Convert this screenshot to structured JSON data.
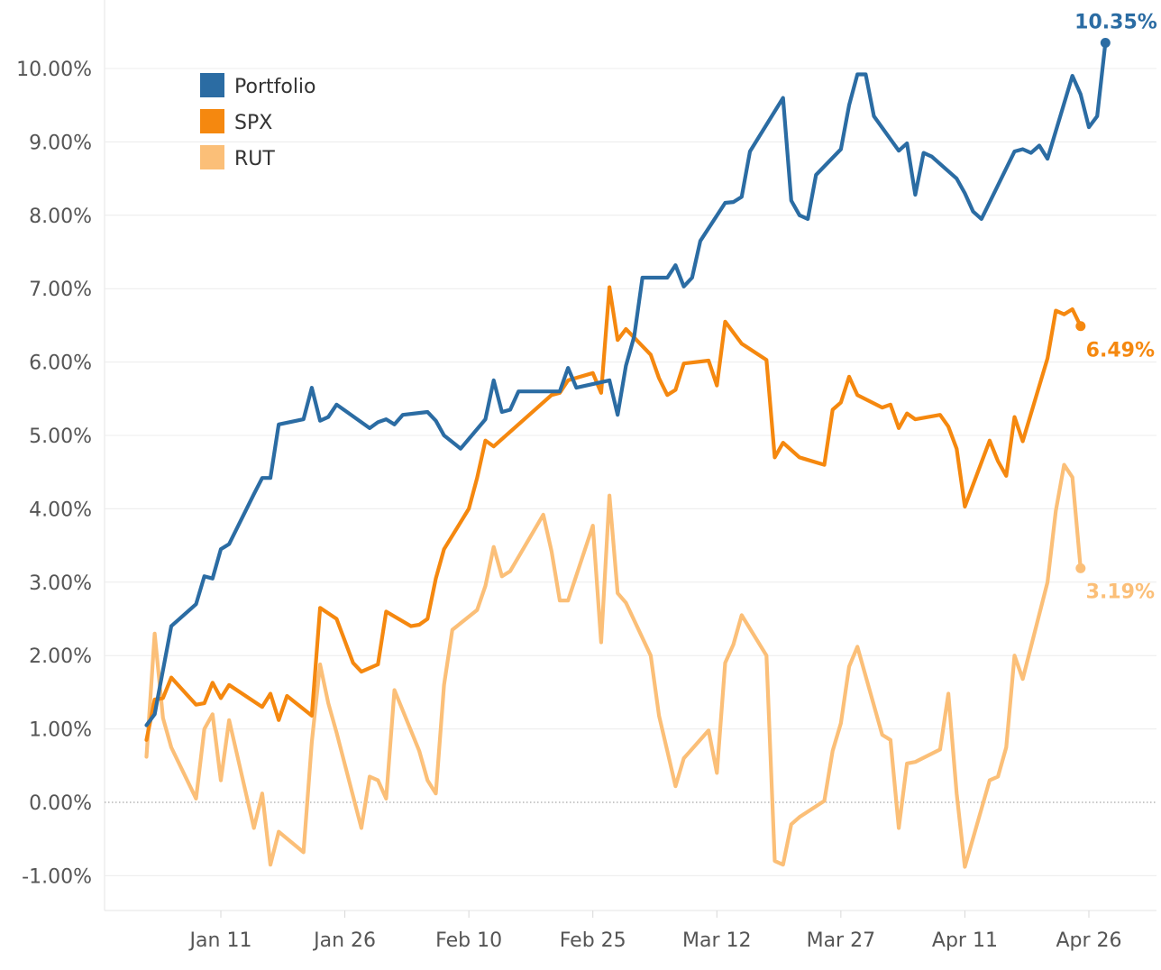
{
  "chart_data": {
    "type": "line",
    "title": "",
    "xlabel": "",
    "ylabel": "",
    "ylim": [
      -1.3,
      10.7
    ],
    "y_ticks": [
      "10.00%",
      "9.00%",
      "8.00%",
      "7.00%",
      "6.00%",
      "5.00%",
      "4.00%",
      "3.00%",
      "2.00%",
      "1.00%",
      "0.00%",
      "-1.00%"
    ],
    "y_tick_values": [
      10,
      9,
      8,
      7,
      6,
      5,
      4,
      3,
      2,
      1,
      0,
      -1
    ],
    "x_ticks": [
      "Jan 11",
      "Jan 26",
      "Feb 10",
      "Feb 25",
      "Mar 12",
      "Mar 27",
      "Apr 11",
      "Apr 26"
    ],
    "x_tick_days": [
      10,
      25,
      40,
      55,
      70,
      85,
      100,
      115
    ],
    "x_range_days": [
      -3,
      124
    ],
    "zero_line": true,
    "grid": "horizontal",
    "legend_position": "top-left",
    "series": [
      {
        "name": "Portfolio",
        "color": "#2b6ca3",
        "end_label": "10.35%",
        "points": [
          [
            1,
            1.05
          ],
          [
            2,
            1.2
          ],
          [
            4,
            2.4
          ],
          [
            7,
            2.7
          ],
          [
            8,
            3.08
          ],
          [
            9,
            3.05
          ],
          [
            10,
            3.45
          ],
          [
            11,
            3.52
          ],
          [
            14,
            4.2
          ],
          [
            15,
            4.42
          ],
          [
            16,
            4.42
          ],
          [
            17,
            5.15
          ],
          [
            20,
            5.22
          ],
          [
            21,
            5.65
          ],
          [
            22,
            5.2
          ],
          [
            23,
            5.25
          ],
          [
            24,
            5.42
          ],
          [
            28,
            5.1
          ],
          [
            29,
            5.18
          ],
          [
            30,
            5.22
          ],
          [
            31,
            5.15
          ],
          [
            32,
            5.28
          ],
          [
            35,
            5.32
          ],
          [
            36,
            5.2
          ],
          [
            37,
            5.0
          ],
          [
            39,
            4.82
          ],
          [
            42,
            5.22
          ],
          [
            43,
            5.75
          ],
          [
            44,
            5.32
          ],
          [
            45,
            5.35
          ],
          [
            46,
            5.6
          ],
          [
            51,
            5.6
          ],
          [
            52,
            5.92
          ],
          [
            53,
            5.65
          ],
          [
            57,
            5.75
          ],
          [
            58,
            5.28
          ],
          [
            59,
            5.95
          ],
          [
            60,
            6.35
          ],
          [
            61,
            7.15
          ],
          [
            64,
            7.15
          ],
          [
            65,
            7.32
          ],
          [
            66,
            7.03
          ],
          [
            67,
            7.15
          ],
          [
            68,
            7.65
          ],
          [
            71,
            8.17
          ],
          [
            72,
            8.18
          ],
          [
            73,
            8.25
          ],
          [
            74,
            8.87
          ],
          [
            78,
            9.6
          ],
          [
            79,
            8.2
          ],
          [
            80,
            8.0
          ],
          [
            81,
            7.95
          ],
          [
            82,
            8.55
          ],
          [
            85,
            8.9
          ],
          [
            86,
            9.5
          ],
          [
            87,
            9.92
          ],
          [
            88,
            9.92
          ],
          [
            89,
            9.35
          ],
          [
            92,
            8.88
          ],
          [
            93,
            8.98
          ],
          [
            94,
            8.28
          ],
          [
            95,
            8.85
          ],
          [
            96,
            8.8
          ],
          [
            99,
            8.5
          ],
          [
            100,
            8.3
          ],
          [
            101,
            8.05
          ],
          [
            102,
            7.95
          ],
          [
            106,
            8.87
          ],
          [
            107,
            8.9
          ],
          [
            108,
            8.85
          ],
          [
            109,
            8.95
          ],
          [
            110,
            8.77
          ],
          [
            113,
            9.9
          ],
          [
            114,
            9.65
          ],
          [
            115,
            9.2
          ],
          [
            116,
            9.35
          ],
          [
            117,
            10.35
          ]
        ]
      },
      {
        "name": "SPX",
        "color": "#f5880f",
        "end_label": "6.49%",
        "points": [
          [
            1,
            0.85
          ],
          [
            2,
            1.4
          ],
          [
            3,
            1.42
          ],
          [
            4,
            1.7
          ],
          [
            7,
            1.33
          ],
          [
            8,
            1.35
          ],
          [
            9,
            1.63
          ],
          [
            10,
            1.42
          ],
          [
            11,
            1.6
          ],
          [
            15,
            1.3
          ],
          [
            16,
            1.48
          ],
          [
            17,
            1.12
          ],
          [
            18,
            1.45
          ],
          [
            21,
            1.18
          ],
          [
            22,
            2.65
          ],
          [
            24,
            2.5
          ],
          [
            26,
            1.9
          ],
          [
            27,
            1.78
          ],
          [
            29,
            1.88
          ],
          [
            30,
            2.6
          ],
          [
            33,
            2.4
          ],
          [
            34,
            2.42
          ],
          [
            35,
            2.5
          ],
          [
            36,
            3.05
          ],
          [
            37,
            3.45
          ],
          [
            40,
            4.0
          ],
          [
            41,
            4.42
          ],
          [
            42,
            4.93
          ],
          [
            43,
            4.85
          ],
          [
            50,
            5.55
          ],
          [
            51,
            5.58
          ],
          [
            52,
            5.75
          ],
          [
            55,
            5.85
          ],
          [
            56,
            5.58
          ],
          [
            57,
            7.02
          ],
          [
            58,
            6.3
          ],
          [
            59,
            6.45
          ],
          [
            62,
            6.1
          ],
          [
            63,
            5.78
          ],
          [
            64,
            5.55
          ],
          [
            65,
            5.62
          ],
          [
            66,
            5.98
          ],
          [
            69,
            6.02
          ],
          [
            70,
            5.68
          ],
          [
            71,
            6.55
          ],
          [
            73,
            6.25
          ],
          [
            76,
            6.03
          ],
          [
            77,
            4.7
          ],
          [
            78,
            4.9
          ],
          [
            80,
            4.7
          ],
          [
            83,
            4.6
          ],
          [
            84,
            5.35
          ],
          [
            85,
            5.45
          ],
          [
            86,
            5.8
          ],
          [
            87,
            5.55
          ],
          [
            90,
            5.38
          ],
          [
            91,
            5.42
          ],
          [
            92,
            5.1
          ],
          [
            93,
            5.3
          ],
          [
            94,
            5.22
          ],
          [
            97,
            5.28
          ],
          [
            98,
            5.12
          ],
          [
            99,
            4.82
          ],
          [
            100,
            4.03
          ],
          [
            103,
            4.93
          ],
          [
            104,
            4.65
          ],
          [
            105,
            4.45
          ],
          [
            106,
            5.25
          ],
          [
            107,
            4.92
          ],
          [
            110,
            6.05
          ],
          [
            111,
            6.7
          ],
          [
            112,
            6.65
          ],
          [
            113,
            6.72
          ],
          [
            114,
            6.49
          ]
        ]
      },
      {
        "name": "RUT",
        "color": "#fbbf78",
        "end_label": "3.19%",
        "points": [
          [
            1,
            0.62
          ],
          [
            2,
            2.3
          ],
          [
            3,
            1.15
          ],
          [
            4,
            0.75
          ],
          [
            7,
            0.05
          ],
          [
            8,
            1.0
          ],
          [
            9,
            1.2
          ],
          [
            10,
            0.3
          ],
          [
            11,
            1.12
          ],
          [
            14,
            -0.35
          ],
          [
            15,
            0.12
          ],
          [
            16,
            -0.85
          ],
          [
            17,
            -0.4
          ],
          [
            20,
            -0.68
          ],
          [
            21,
            0.82
          ],
          [
            22,
            1.88
          ],
          [
            23,
            1.35
          ],
          [
            24,
            0.95
          ],
          [
            27,
            -0.35
          ],
          [
            28,
            0.35
          ],
          [
            29,
            0.3
          ],
          [
            30,
            0.05
          ],
          [
            31,
            1.53
          ],
          [
            34,
            0.7
          ],
          [
            35,
            0.3
          ],
          [
            36,
            0.12
          ],
          [
            37,
            1.6
          ],
          [
            38,
            2.35
          ],
          [
            41,
            2.62
          ],
          [
            42,
            2.95
          ],
          [
            43,
            3.48
          ],
          [
            44,
            3.08
          ],
          [
            45,
            3.15
          ],
          [
            49,
            3.92
          ],
          [
            50,
            3.42
          ],
          [
            51,
            2.75
          ],
          [
            52,
            2.75
          ],
          [
            55,
            3.77
          ],
          [
            56,
            2.18
          ],
          [
            57,
            4.18
          ],
          [
            58,
            2.85
          ],
          [
            59,
            2.72
          ],
          [
            62,
            2.0
          ],
          [
            63,
            1.18
          ],
          [
            64,
            0.7
          ],
          [
            65,
            0.22
          ],
          [
            66,
            0.6
          ],
          [
            69,
            0.98
          ],
          [
            70,
            0.4
          ],
          [
            71,
            1.9
          ],
          [
            72,
            2.15
          ],
          [
            73,
            2.55
          ],
          [
            76,
            2.0
          ],
          [
            77,
            -0.8
          ],
          [
            78,
            -0.85
          ],
          [
            79,
            -0.3
          ],
          [
            80,
            -0.2
          ],
          [
            83,
            0.02
          ],
          [
            84,
            0.7
          ],
          [
            85,
            1.08
          ],
          [
            86,
            1.85
          ],
          [
            87,
            2.12
          ],
          [
            90,
            0.92
          ],
          [
            91,
            0.85
          ],
          [
            92,
            -0.35
          ],
          [
            93,
            0.53
          ],
          [
            94,
            0.55
          ],
          [
            97,
            0.72
          ],
          [
            98,
            1.48
          ],
          [
            99,
            0.12
          ],
          [
            100,
            -0.88
          ],
          [
            103,
            0.3
          ],
          [
            104,
            0.35
          ],
          [
            105,
            0.75
          ],
          [
            106,
            2.0
          ],
          [
            107,
            1.68
          ],
          [
            110,
            3.0
          ],
          [
            111,
            3.97
          ],
          [
            112,
            4.6
          ],
          [
            113,
            4.43
          ],
          [
            114,
            3.19
          ]
        ]
      }
    ]
  }
}
